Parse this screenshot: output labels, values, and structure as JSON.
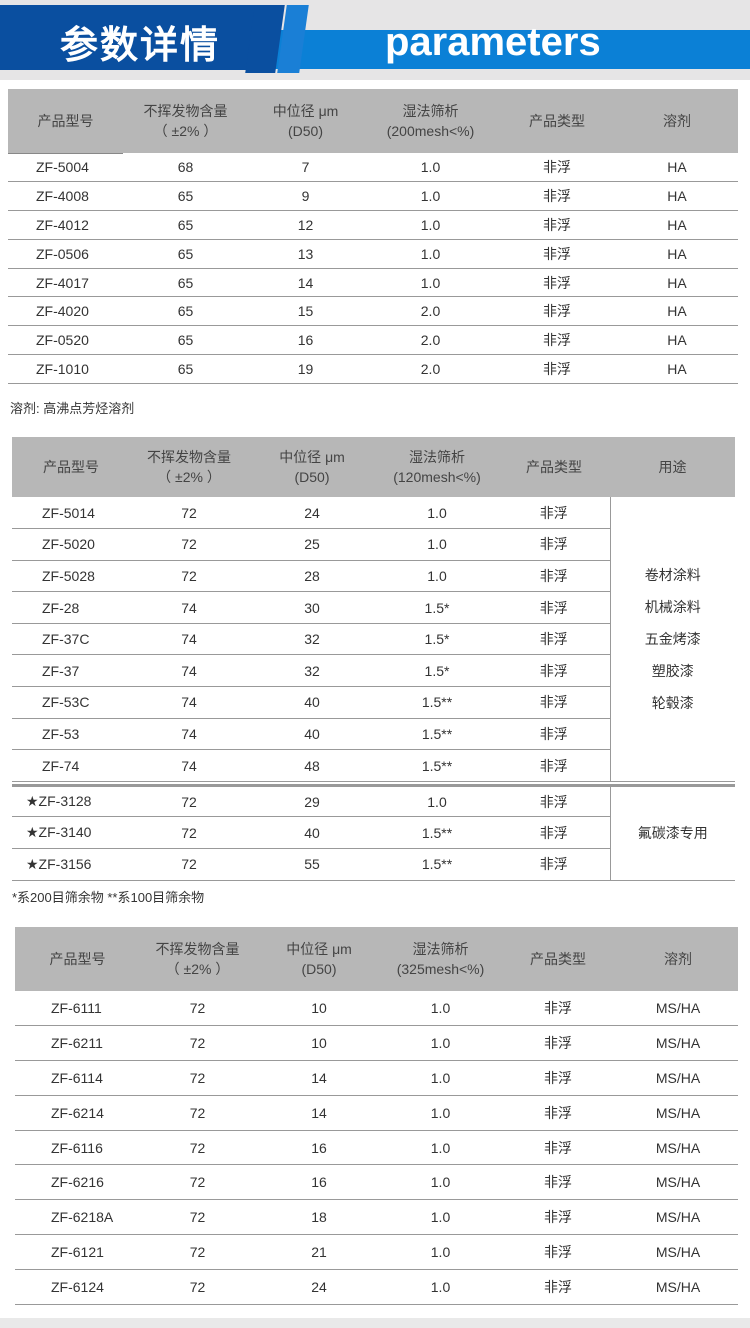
{
  "banner": {
    "title_cn": "参数详情",
    "title_en": "parameters"
  },
  "table1": {
    "headers": [
      "产品型号",
      "不挥发物含量\n（ ±2% ）",
      "中位径 μm\n(D50)",
      "湿法筛析\n(200mesh<%)",
      "产品类型",
      "溶剂"
    ],
    "rows": [
      [
        "ZF-5004",
        "68",
        "7",
        "1.0",
        "非浮",
        "HA"
      ],
      [
        "ZF-4008",
        "65",
        "9",
        "1.0",
        "非浮",
        "HA"
      ],
      [
        "ZF-4012",
        "65",
        "12",
        "1.0",
        "非浮",
        "HA"
      ],
      [
        "ZF-0506",
        "65",
        "13",
        "1.0",
        "非浮",
        "HA"
      ],
      [
        "ZF-4017",
        "65",
        "14",
        "1.0",
        "非浮",
        "HA"
      ],
      [
        "ZF-4020",
        "65",
        "15",
        "2.0",
        "非浮",
        "HA"
      ],
      [
        "ZF-0520",
        "65",
        "16",
        "2.0",
        "非浮",
        "HA"
      ],
      [
        "ZF-1010",
        "65",
        "19",
        "2.0",
        "非浮",
        "HA"
      ]
    ],
    "note": "溶剂: 高沸点芳烃溶剂"
  },
  "table2": {
    "headers": [
      "产品型号",
      "不挥发物含量\n（ ±2% ）",
      "中位径 μm\n(D50)",
      "湿法筛析\n(120mesh<%)",
      "产品类型",
      "用途"
    ],
    "rows": [
      [
        "ZF-5014",
        "72",
        "24",
        "1.0",
        "非浮"
      ],
      [
        "ZF-5020",
        "72",
        "25",
        "1.0",
        "非浮"
      ],
      [
        "ZF-5028",
        "72",
        "28",
        "1.0",
        "非浮"
      ],
      [
        "ZF-28",
        "74",
        "30",
        "1.5*",
        "非浮"
      ],
      [
        "ZF-37C",
        "74",
        "32",
        "1.5*",
        "非浮"
      ],
      [
        "ZF-37",
        "74",
        "32",
        "1.5*",
        "非浮"
      ],
      [
        "ZF-53C",
        "74",
        "40",
        "1.5**",
        "非浮"
      ],
      [
        "ZF-53",
        "74",
        "40",
        "1.5**",
        "非浮"
      ],
      [
        "ZF-74",
        "74",
        "48",
        "1.5**",
        "非浮"
      ]
    ],
    "usage1": [
      "卷材涂料",
      "机械涂料",
      "五金烤漆",
      "塑胶漆",
      "轮毂漆"
    ],
    "rows2": [
      [
        "★ZF-3128",
        "72",
        "29",
        "1.0",
        "非浮"
      ],
      [
        "★ZF-3140",
        "72",
        "40",
        "1.5**",
        "非浮"
      ],
      [
        "★ZF-3156",
        "72",
        "55",
        "1.5**",
        "非浮"
      ]
    ],
    "usage2": "氟碳漆专用",
    "note": "*系200目筛余物  **系100目筛余物"
  },
  "table3": {
    "headers": [
      "产品型号",
      "不挥发物含量\n（ ±2% ）",
      "中位径 μm\n(D50)",
      "湿法筛析\n(325mesh<%)",
      "产品类型",
      "溶剂"
    ],
    "rows": [
      [
        "ZF-6111",
        "72",
        "10",
        "1.0",
        "非浮",
        "MS/HA"
      ],
      [
        "ZF-6211",
        "72",
        "10",
        "1.0",
        "非浮",
        "MS/HA"
      ],
      [
        "ZF-6114",
        "72",
        "14",
        "1.0",
        "非浮",
        "MS/HA"
      ],
      [
        "ZF-6214",
        "72",
        "14",
        "1.0",
        "非浮",
        "MS/HA"
      ],
      [
        "ZF-6116",
        "72",
        "16",
        "1.0",
        "非浮",
        "MS/HA"
      ],
      [
        "ZF-6216",
        "72",
        "16",
        "1.0",
        "非浮",
        "MS/HA"
      ],
      [
        "ZF-6218A",
        "72",
        "18",
        "1.0",
        "非浮",
        "MS/HA"
      ],
      [
        "ZF-6121",
        "72",
        "21",
        "1.0",
        "非浮",
        "MS/HA"
      ],
      [
        "ZF-6124",
        "72",
        "24",
        "1.0",
        "非浮",
        "MS/HA"
      ]
    ]
  }
}
